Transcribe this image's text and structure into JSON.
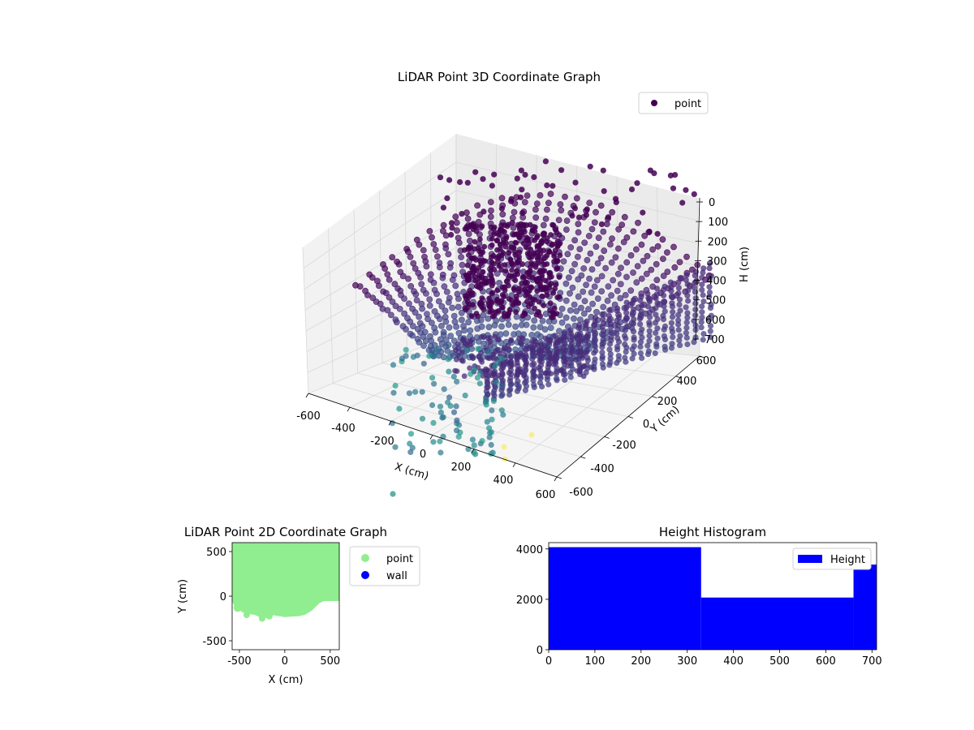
{
  "chart_data": [
    {
      "type": "scatter",
      "projection": "3d",
      "title": "LiDAR Point 3D Coordinate Graph",
      "xlabel": "X (cm)",
      "ylabel": "Y (cm)",
      "zlabel": "H (cm)",
      "xlim": [
        -600,
        600
      ],
      "ylim": [
        -600,
        600
      ],
      "zlim": [
        700,
        0
      ],
      "xticks": [
        -600,
        -400,
        -200,
        0,
        200,
        400,
        600
      ],
      "yticks": [
        -600,
        -400,
        -200,
        0,
        200,
        400,
        600
      ],
      "zticks": [
        0,
        100,
        200,
        300,
        400,
        500,
        600,
        700
      ],
      "grid": true,
      "legend": {
        "position": "top-right",
        "entries": [
          "point"
        ]
      },
      "colormap": "viridis",
      "marker_color": "#440154",
      "series": [
        {
          "name": "point",
          "note_shape": "ring"
        }
      ]
    },
    {
      "type": "scatter",
      "title": "LiDAR Point 2D Coordinate Graph",
      "xlabel": "X (cm)",
      "ylabel": "Y (cm)",
      "xlim": [
        -580,
        600
      ],
      "ylim": [
        -600,
        600
      ],
      "xticks": [
        -500,
        0,
        500
      ],
      "yticks": [
        -500,
        0,
        500
      ],
      "legend": {
        "position": "outside-right",
        "entries": [
          "point",
          "wall"
        ]
      },
      "series": [
        {
          "name": "point",
          "color": "#90ee90",
          "boundary": [
            [
              -580,
              600
            ],
            [
              600,
              600
            ],
            [
              600,
              -55
            ],
            [
              430,
              -55
            ],
            [
              380,
              -80
            ],
            [
              300,
              -160
            ],
            [
              220,
              -210
            ],
            [
              150,
              -225
            ],
            [
              60,
              -230
            ],
            [
              0,
              -235
            ],
            [
              -60,
              -225
            ],
            [
              -120,
              -215
            ],
            [
              -170,
              -225
            ],
            [
              -220,
              -250
            ],
            [
              -270,
              -240
            ],
            [
              -330,
              -210
            ],
            [
              -400,
              -200
            ],
            [
              -470,
              -180
            ],
            [
              -520,
              -130
            ],
            [
              -560,
              -100
            ],
            [
              -580,
              -60
            ]
          ]
        },
        {
          "name": "wall",
          "color": "#0000ff",
          "values": []
        }
      ]
    },
    {
      "type": "bar",
      "title": "Height Histogram",
      "xlim": [
        0,
        710
      ],
      "ylim": [
        0,
        4250
      ],
      "xticks": [
        0,
        100,
        200,
        300,
        400,
        500,
        600,
        700
      ],
      "yticks": [
        0,
        2000,
        4000
      ],
      "color": "#0000ff",
      "legend": {
        "position": "top-right",
        "entries": [
          "Height"
        ]
      },
      "bins": [
        {
          "start": 0,
          "end": 330,
          "value": 4070
        },
        {
          "start": 330,
          "end": 660,
          "value": 2070
        },
        {
          "start": 660,
          "end": 710,
          "value": 3380
        }
      ]
    }
  ]
}
